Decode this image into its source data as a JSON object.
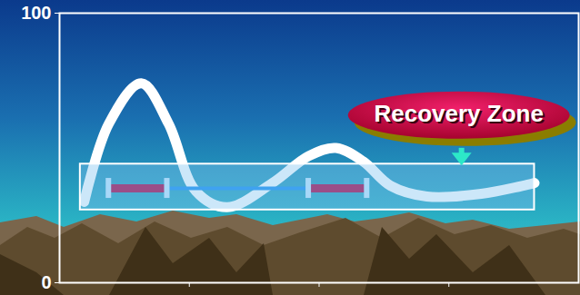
{
  "chart_data": {
    "type": "line",
    "x": [
      0.19,
      0.38,
      0.63,
      0.84,
      1.05,
      1.29,
      1.64,
      1.92,
      2.13,
      2.34,
      2.55,
      2.83,
      3.25,
      3.66
    ],
    "values": [
      30,
      59,
      74,
      59,
      34,
      28,
      37,
      47,
      50,
      45,
      36,
      32,
      33,
      37
    ],
    "color": "#ffffff",
    "xlim": [
      0,
      4
    ],
    "xticks": [
      1,
      2,
      3
    ],
    "ylim": [
      0,
      100
    ],
    "yticks": [
      0,
      100
    ],
    "tick_labels": "y",
    "zone": {
      "x": [
        0.16,
        3.66
      ],
      "y": [
        27,
        44
      ]
    },
    "intervals": [
      {
        "x": [
          0.38,
          0.83
        ],
        "y": 35
      },
      {
        "x": [
          1.92,
          2.37
        ],
        "y": 35
      }
    ],
    "annotation": {
      "text": "Recovery Zone",
      "x": 3.08,
      "y": 62
    }
  }
}
